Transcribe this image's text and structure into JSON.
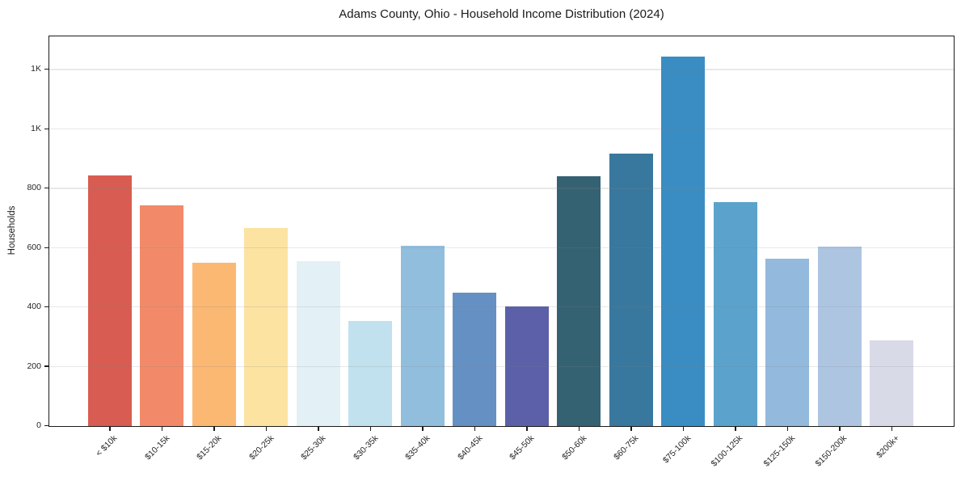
{
  "chart_data": {
    "type": "bar",
    "title": "Adams County, Ohio - Household Income Distribution (2024)",
    "xlabel": "",
    "ylabel": "Households",
    "categories": [
      "< $10k",
      "$10-15k",
      "$15-20k",
      "$20-25k",
      "$25-30k",
      "$30-35k",
      "$35-40k",
      "$40-45k",
      "$45-50k",
      "$50-60k",
      "$60-75k",
      "$75-100k",
      "$100-125k",
      "$125-150k",
      "$150-200k",
      "$200k+"
    ],
    "values": [
      845,
      743,
      551,
      666,
      556,
      355,
      608,
      450,
      402,
      841,
      917,
      1245,
      753,
      564,
      605,
      288
    ],
    "bar_colors": [
      "#d85c51",
      "#f28a6a",
      "#fab873",
      "#fce3a2",
      "#e3f1f6",
      "#c0e1ed",
      "#92bedd",
      "#6590c4",
      "#5b60a8",
      "#356273",
      "#38789f",
      "#3a8dc2",
      "#5ba3cc",
      "#93b9dc",
      "#aec5e2",
      "#d9dae8"
    ],
    "ylim": [
      0,
      1310
    ],
    "ytick_values": [
      0,
      200,
      400,
      600,
      800,
      1000,
      1200
    ],
    "ytick_labels": [
      "0",
      "200",
      "400",
      "600",
      "800",
      "1K",
      "1K"
    ],
    "grid": "horizontal-only",
    "gridline_color": "#e7e7e7",
    "legend": "none",
    "background": "#ffffff"
  }
}
